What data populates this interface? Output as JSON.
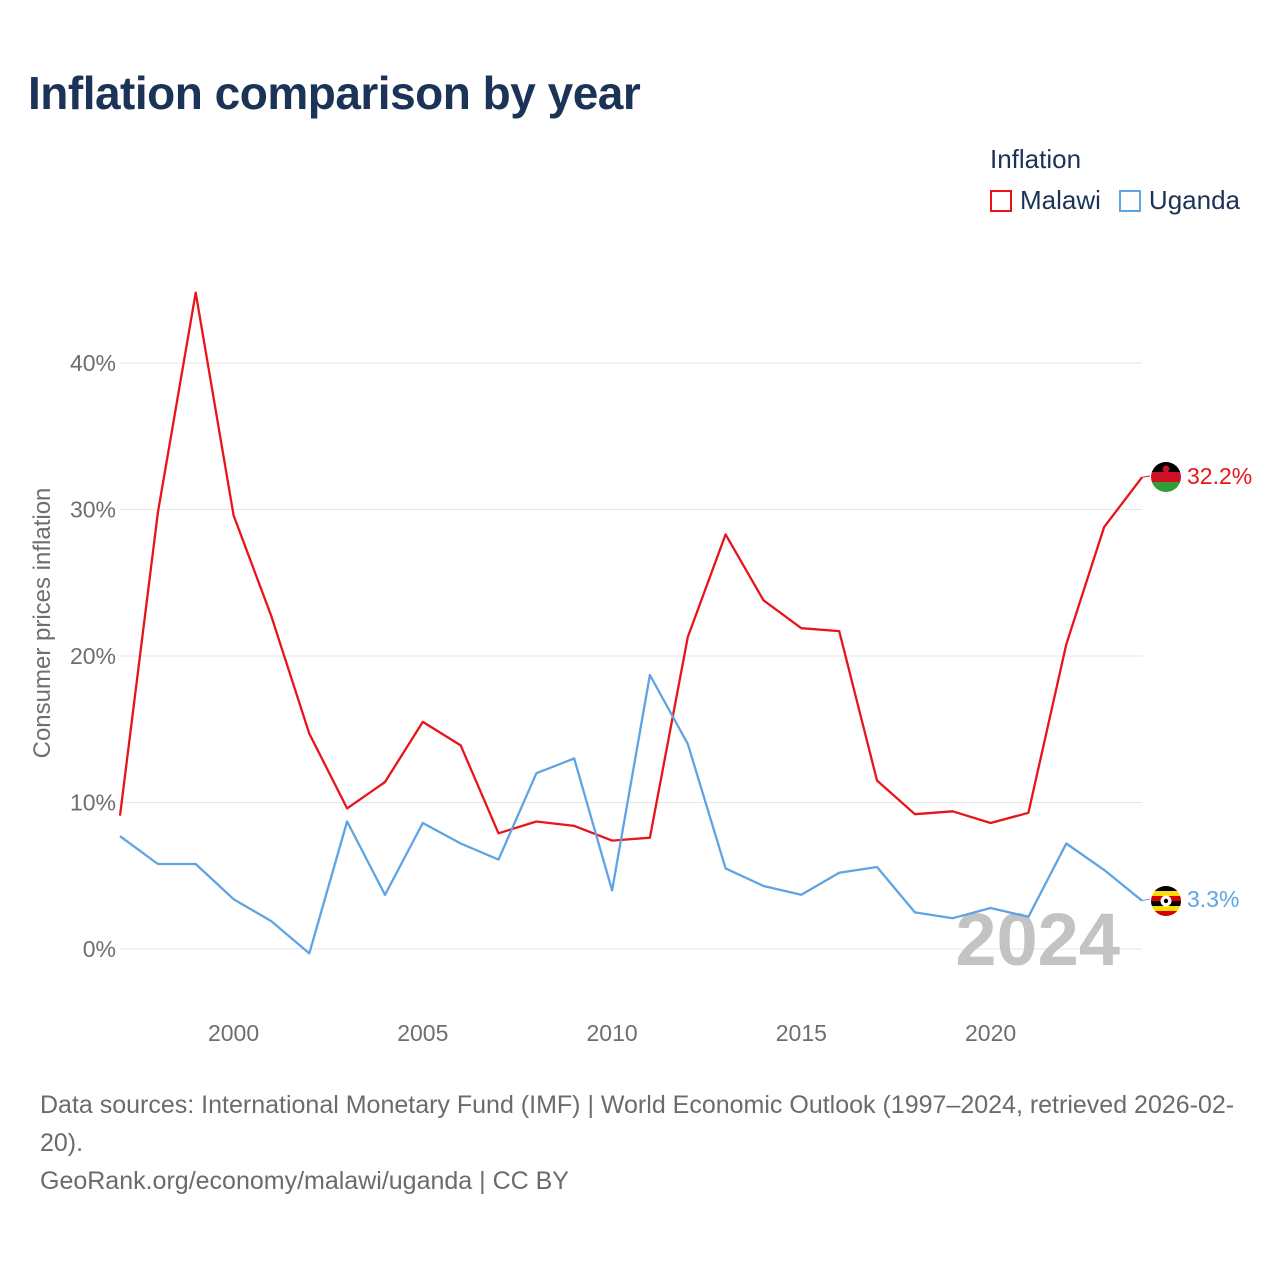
{
  "title": "Inflation comparison by year",
  "legend": {
    "title": "Inflation",
    "items": [
      {
        "label": "Malawi",
        "color": "#e8141a"
      },
      {
        "label": "Uganda",
        "color": "#5ea4e4"
      }
    ]
  },
  "footer": {
    "source": "Data sources: International Monetary Fund (IMF) | World Economic Outlook (1997–2024, retrieved 2026-02-20).",
    "credit": "GeoRank.org/economy/malawi/uganda | CC BY"
  },
  "chart_data": {
    "type": "line",
    "title": "Inflation comparison by year",
    "xlabel": "",
    "ylabel": "Consumer prices inflation",
    "x": [
      1997,
      1998,
      1999,
      2000,
      2001,
      2002,
      2003,
      2004,
      2005,
      2006,
      2007,
      2008,
      2009,
      2010,
      2011,
      2012,
      2013,
      2014,
      2015,
      2016,
      2017,
      2018,
      2019,
      2020,
      2021,
      2022,
      2023,
      2024
    ],
    "xlim": [
      1997,
      2024
    ],
    "ylim": [
      0,
      45
    ],
    "x_ticks": [
      2000,
      2005,
      2010,
      2015,
      2020
    ],
    "y_ticks": [
      0,
      10,
      20,
      30,
      40
    ],
    "y_tick_labels": [
      "0%",
      "10%",
      "20%",
      "30%",
      "40%"
    ],
    "grid": true,
    "legend_position": "top-right",
    "watermark": "2024",
    "series": [
      {
        "name": "Malawi",
        "color": "#e8141a",
        "values": [
          9.1,
          29.8,
          44.8,
          29.6,
          22.7,
          14.7,
          9.6,
          11.4,
          15.5,
          13.9,
          7.9,
          8.7,
          8.4,
          7.4,
          7.6,
          21.3,
          28.3,
          23.8,
          21.9,
          21.7,
          11.5,
          9.2,
          9.4,
          8.6,
          9.3,
          20.8,
          28.8,
          32.2
        ],
        "end_label": "32.2%"
      },
      {
        "name": "Uganda",
        "color": "#5ea4e4",
        "values": [
          7.7,
          5.8,
          5.8,
          3.4,
          1.9,
          -0.3,
          8.7,
          3.7,
          8.6,
          7.2,
          6.1,
          12.0,
          13.0,
          4.0,
          18.7,
          14.0,
          5.5,
          4.3,
          3.7,
          5.2,
          5.6,
          2.5,
          2.1,
          2.8,
          2.2,
          7.2,
          5.4,
          3.3
        ],
        "end_label": "3.3%"
      }
    ]
  }
}
